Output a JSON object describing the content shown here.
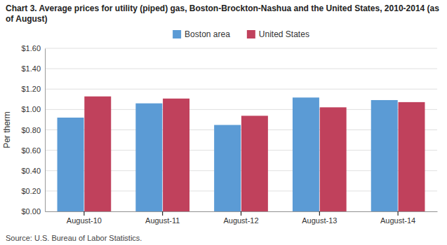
{
  "chart_data": {
    "type": "bar",
    "title": "Chart 3. Average prices for utility (piped) gas, Boston-Brockton-Nashua and the United States, 2010-2014 (as of August)",
    "ylabel": "Per therm",
    "source": "Source: U.S. Bureau of Labor Statistics.",
    "categories": [
      "August-10",
      "August-11",
      "August-12",
      "August-13",
      "August-14"
    ],
    "series": [
      {
        "name": "Boston area",
        "color": "#5B9BD5",
        "values": [
          0.92,
          1.06,
          0.848,
          1.117,
          1.092
        ]
      },
      {
        "name": "United States",
        "color": "#C0415C",
        "values": [
          1.128,
          1.107,
          0.938,
          1.021,
          1.072
        ]
      }
    ],
    "ylim": [
      0,
      1.6
    ],
    "yticks": [
      {
        "value": 0.0,
        "label": "$0.00"
      },
      {
        "value": 0.2,
        "label": "$0.20"
      },
      {
        "value": 0.4,
        "label": "$0.40"
      },
      {
        "value": 0.6,
        "label": "$0.60"
      },
      {
        "value": 0.8,
        "label": "$0.80"
      },
      {
        "value": 1.0,
        "label": "$1.00"
      },
      {
        "value": 1.2,
        "label": "$1.20"
      },
      {
        "value": 1.4,
        "label": "$1.40"
      },
      {
        "value": 1.6,
        "label": "$1.60"
      }
    ],
    "grid": true,
    "legend": "top"
  }
}
